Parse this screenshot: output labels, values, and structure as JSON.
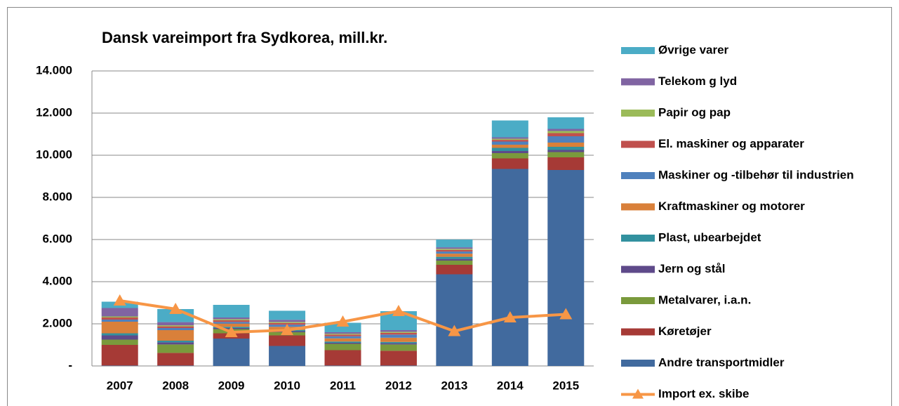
{
  "chart_data": {
    "type": "bar",
    "stacked": true,
    "title": "Dansk vareimport fra Sydkorea, mill.kr.",
    "categories": [
      "2007",
      "2008",
      "2009",
      "2010",
      "2011",
      "2012",
      "2013",
      "2014",
      "2015"
    ],
    "ylim": [
      0,
      14000
    ],
    "yticks": [
      {
        "value": 0,
        "label": "-"
      },
      {
        "value": 2000,
        "label": "2.000"
      },
      {
        "value": 4000,
        "label": "4.000"
      },
      {
        "value": 6000,
        "label": "6.000"
      },
      {
        "value": 8000,
        "label": "8.000"
      },
      {
        "value": 10000,
        "label": "10.000"
      },
      {
        "value": 12000,
        "label": "12.000"
      },
      {
        "value": 14000,
        "label": "14.000"
      }
    ],
    "grid": true,
    "legend": "right",
    "series": [
      {
        "name": "Andre transportmidler",
        "color": "#416a9e",
        "values": [
          20,
          20,
          1300,
          950,
          20,
          20,
          4350,
          9350,
          9300
        ]
      },
      {
        "name": "Køretøjer",
        "color": "#a63a36",
        "values": [
          980,
          600,
          250,
          500,
          730,
          700,
          450,
          500,
          600
        ]
      },
      {
        "name": "Metalvarer, i.a.n.",
        "color": "#7a9a3c",
        "values": [
          250,
          400,
          200,
          150,
          300,
          300,
          200,
          250,
          250
        ]
      },
      {
        "name": "Jern og stål",
        "color": "#5e4a8a",
        "values": [
          200,
          100,
          50,
          50,
          50,
          60,
          80,
          100,
          100
        ]
      },
      {
        "name": "Plast, ubearbejdet",
        "color": "#32919f",
        "values": [
          100,
          80,
          60,
          60,
          60,
          60,
          100,
          150,
          150
        ]
      },
      {
        "name": "Kraftmaskiner og motorer",
        "color": "#d9803a",
        "values": [
          550,
          500,
          150,
          150,
          150,
          200,
          150,
          150,
          200
        ]
      },
      {
        "name": "Maskiner og -tilbehør til industrien",
        "color": "#4f81bd",
        "values": [
          100,
          100,
          80,
          100,
          100,
          150,
          100,
          150,
          300
        ]
      },
      {
        "name": "El. maskiner og apparater",
        "color": "#c0504d",
        "values": [
          100,
          80,
          80,
          80,
          80,
          80,
          80,
          80,
          150
        ]
      },
      {
        "name": "Papir og pap",
        "color": "#9bbb59",
        "values": [
          50,
          50,
          50,
          50,
          40,
          50,
          50,
          50,
          100
        ]
      },
      {
        "name": "Telekom g lyd",
        "color": "#8064a2",
        "values": [
          400,
          150,
          80,
          100,
          70,
          80,
          70,
          70,
          100
        ]
      },
      {
        "name": "Øvrige varer",
        "color": "#4bacc6",
        "values": [
          300,
          620,
          600,
          430,
          450,
          900,
          370,
          800,
          550
        ]
      },
      {
        "name": "Import ex. skibe",
        "color": "#f79646",
        "type": "line",
        "values": [
          3100,
          2700,
          1600,
          1700,
          2100,
          2600,
          1650,
          2300,
          2450
        ]
      }
    ]
  }
}
